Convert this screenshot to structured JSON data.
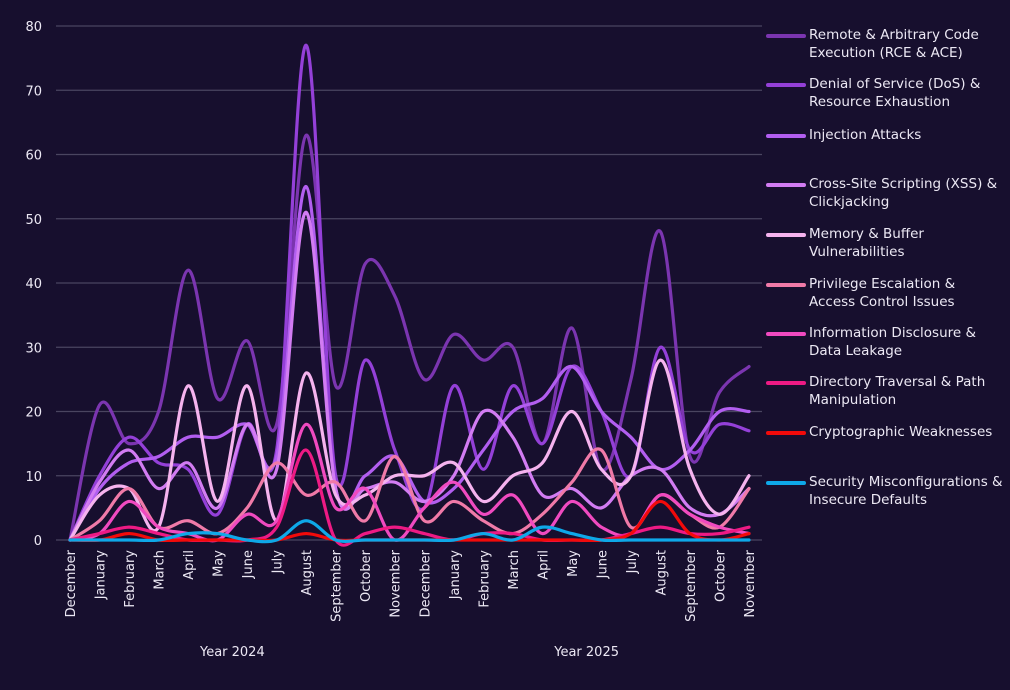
{
  "chart_data": {
    "type": "line",
    "title": "",
    "xlabel": "",
    "ylabel": "",
    "ylim": [
      0,
      80
    ],
    "yticks": [
      0,
      10,
      20,
      30,
      40,
      50,
      60,
      70,
      80
    ],
    "grid": true,
    "legend_position": "right",
    "x": [
      "December",
      "January",
      "February",
      "March",
      "April",
      "May",
      "June",
      "July",
      "August",
      "September",
      "October",
      "November",
      "December",
      "January",
      "February",
      "March",
      "April",
      "May",
      "June",
      "July",
      "August",
      "September",
      "October",
      "November"
    ],
    "x_groups": [
      {
        "label": "Year 2024",
        "start": 0,
        "end": 11
      },
      {
        "label": "Year 2025",
        "start": 12,
        "end": 23
      }
    ],
    "series": [
      {
        "name": "Remote & Arbitrary Code Execution (RCE & ACE)",
        "color": "#7b35b0",
        "values": [
          0,
          21,
          15,
          20,
          42,
          22,
          31,
          18,
          63,
          24,
          43,
          38,
          25,
          32,
          28,
          30,
          15,
          33,
          11,
          25,
          48,
          13,
          23,
          27
        ]
      },
      {
        "name": "Denial of Service (DoS) & Resource Exhaustion",
        "color": "#9440d8",
        "values": [
          0,
          10,
          16,
          12,
          11,
          4,
          18,
          14,
          77,
          10,
          28,
          14,
          5,
          24,
          11,
          24,
          15,
          27,
          20,
          10,
          30,
          14,
          18,
          17
        ]
      },
      {
        "name": "Injection Attacks",
        "color": "#b25ef0",
        "values": [
          0,
          8,
          12,
          13,
          16,
          16,
          18,
          13,
          55,
          8,
          10,
          13,
          6,
          8,
          14,
          20,
          22,
          27,
          20,
          16,
          11,
          14,
          20,
          20
        ]
      },
      {
        "name": "Cross-Site Scripting (XSS) & Clickjacking",
        "color": "#d27cf2",
        "values": [
          0,
          9,
          14,
          8,
          12,
          5,
          18,
          11,
          51,
          8,
          8,
          9,
          6,
          10,
          20,
          16,
          7,
          8,
          5,
          10,
          11,
          5,
          4,
          8
        ]
      },
      {
        "name": "Memory & Buffer Vulnerabilities",
        "color": "#f5b3ee",
        "values": [
          0,
          7,
          8,
          2,
          24,
          6,
          24,
          3,
          26,
          7,
          7,
          10,
          10,
          12,
          6,
          10,
          12,
          20,
          11,
          10,
          28,
          11,
          4,
          10
        ]
      },
      {
        "name": "Privilege Escalation & Access Control Issues",
        "color": "#f07aa8",
        "values": [
          0,
          3,
          8,
          2,
          3,
          1,
          5,
          12,
          7,
          9,
          3,
          13,
          3,
          6,
          3,
          1,
          4,
          9,
          14,
          2,
          7,
          4,
          2,
          8
        ]
      },
      {
        "name": "Information Disclosure & Data Leakage",
        "color": "#f04ac0",
        "values": [
          0,
          1,
          6,
          2,
          1,
          0,
          4,
          3,
          18,
          5,
          8,
          0,
          5,
          9,
          4,
          7,
          1,
          6,
          2,
          1,
          7,
          4,
          2,
          1
        ]
      },
      {
        "name": "Directory Traversal & Path Manipulation",
        "color": "#ee1a84",
        "values": [
          0,
          1,
          2,
          1,
          0,
          0,
          0,
          2,
          14,
          0,
          1,
          2,
          1,
          0,
          1,
          1,
          0,
          0,
          0,
          1,
          2,
          1,
          1,
          2
        ]
      },
      {
        "name": "Cryptographic Weaknesses",
        "color": "#f20a0a",
        "values": [
          0,
          0,
          1,
          0,
          0,
          0,
          0,
          0,
          1,
          0,
          0,
          0,
          0,
          0,
          0,
          0,
          0,
          0,
          0,
          1,
          6,
          1,
          0,
          1
        ]
      },
      {
        "name": "Security Misconfigurations & Insecure Defaults",
        "color": "#0ea8e8",
        "values": [
          0,
          0,
          0,
          0,
          1,
          1,
          0,
          0,
          3,
          0,
          0,
          0,
          0,
          0,
          1,
          0,
          2,
          1,
          0,
          0,
          0,
          0,
          0,
          0
        ]
      }
    ]
  },
  "legend": [
    {
      "label": "Remote & Arbitrary Code Execution (RCE & ACE)"
    },
    {
      "label": "Denial of Service (DoS) & Resource Exhaustion"
    },
    {
      "label": "Injection Attacks"
    },
    {
      "label": "Cross-Site Scripting (XSS) & Clickjacking"
    },
    {
      "label": "Memory & Buffer Vulnerabilities"
    },
    {
      "label": "Privilege Escalation & Access Control Issues"
    },
    {
      "label": "Information Disclosure & Data Leakage"
    },
    {
      "label": "Directory Traversal & Path Manipulation"
    },
    {
      "label": "Cryptographic Weaknesses"
    },
    {
      "label": "Security Misconfigurations & Insecure Defaults"
    }
  ],
  "colors": {
    "background": "#170f2e",
    "gridline": "#4a4560",
    "text": "#ece8f4"
  }
}
